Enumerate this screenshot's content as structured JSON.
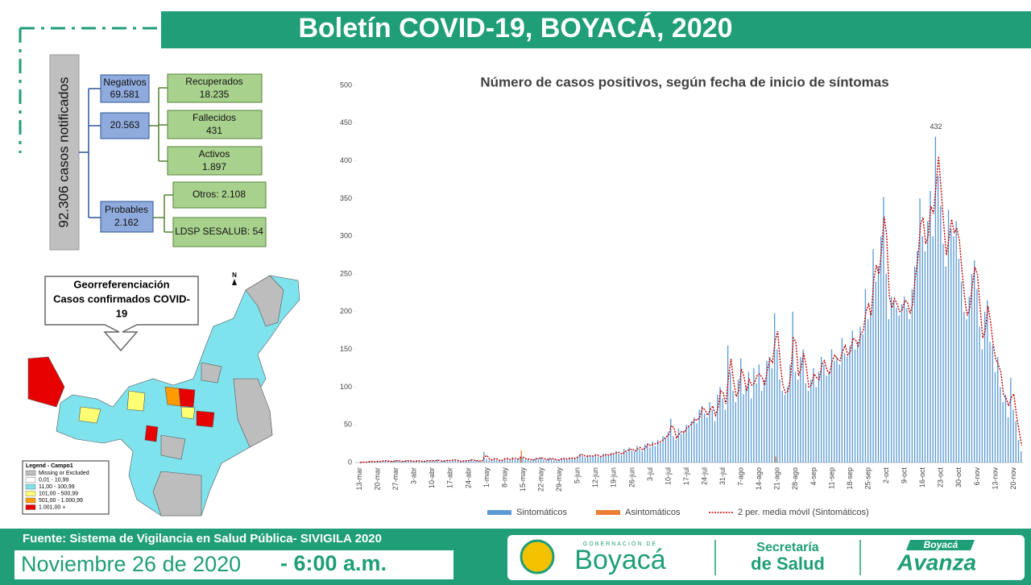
{
  "header": {
    "title": "Boletín COVID-19, BOYACÁ, 2020"
  },
  "summary": {
    "total": "92.306 casos notificados",
    "negativos": {
      "label": "Negativos",
      "value": "69.581"
    },
    "confirmados": {
      "value": "20.563"
    },
    "recuperados": {
      "label": "Recuperados",
      "value": "18.235"
    },
    "fallecidos": {
      "label": "Fallecidos",
      "value": "431"
    },
    "activos": {
      "label": "Activos",
      "value": "1.897"
    },
    "probables": {
      "label": "Probables",
      "value": "2.162"
    },
    "otros": "Otros: 2.108",
    "ldsp": "LDSP SESALUB: 54"
  },
  "map": {
    "callout": [
      "Georreferenciación",
      "Casos confirmados COVID-",
      "19"
    ],
    "north": "N",
    "legend_title": "Legend - Campo1",
    "legend": [
      {
        "label": "Missing or Excluded",
        "color": "#bdbdbd"
      },
      {
        "label": "0,01 - 10,99",
        "color": "#ffffff"
      },
      {
        "label": "11,00 - 100,99",
        "color": "#7fe3ee"
      },
      {
        "label": "101,00 - 500,99",
        "color": "#ffff73"
      },
      {
        "label": "501,00 - 1.000,99",
        "color": "#ff9a00"
      },
      {
        "label": "1.001,00 +",
        "color": "#e60000"
      }
    ]
  },
  "footer": {
    "source": "Fuente: Sistema de Vigilancia en Salud Pública- SIVIGILA 2020",
    "date": "Noviembre 26 de 2020",
    "time": "- 6:00 a.m.",
    "gob_small": "GOBERNACIÓN DE",
    "gob": "Boyacá",
    "sec1": "Secretaría",
    "sec2": "de Salud",
    "avanza_small": "Boyacá",
    "avanza": "Avanza"
  },
  "chart_data": {
    "type": "bar",
    "title": "Número de casos positivos, según fecha de inicio de síntomas",
    "ylim": [
      0,
      500
    ],
    "yticks": [
      0,
      50,
      100,
      150,
      200,
      250,
      300,
      350,
      400,
      450,
      500
    ],
    "grid": false,
    "legend": "bottom",
    "categories": [
      "13-mar",
      null,
      null,
      null,
      null,
      null,
      null,
      "20-mar",
      null,
      null,
      null,
      null,
      null,
      null,
      "27-mar",
      null,
      null,
      null,
      null,
      null,
      null,
      "3-abr",
      null,
      null,
      null,
      null,
      null,
      null,
      "10-abr",
      null,
      null,
      null,
      null,
      null,
      null,
      "17-abr",
      null,
      null,
      null,
      null,
      null,
      null,
      "24-abr",
      null,
      null,
      null,
      null,
      null,
      null,
      "1-may",
      null,
      null,
      null,
      null,
      null,
      null,
      "8-may",
      null,
      null,
      null,
      null,
      null,
      null,
      "15-may",
      null,
      null,
      null,
      null,
      null,
      null,
      "22-may",
      null,
      null,
      null,
      null,
      null,
      null,
      "29-may",
      null,
      null,
      null,
      null,
      null,
      null,
      "5-jun",
      null,
      null,
      null,
      null,
      null,
      null,
      "12-jun",
      null,
      null,
      null,
      null,
      null,
      null,
      "19-jun",
      null,
      null,
      null,
      null,
      null,
      null,
      "26-jun",
      null,
      null,
      null,
      null,
      null,
      null,
      "3-jul",
      null,
      null,
      null,
      null,
      null,
      null,
      "10-jul",
      null,
      null,
      null,
      null,
      null,
      null,
      "17-jul",
      null,
      null,
      null,
      null,
      null,
      null,
      "24-jul",
      null,
      null,
      null,
      null,
      null,
      null,
      "31-jul",
      null,
      null,
      null,
      null,
      null,
      null,
      "7-ago",
      null,
      null,
      null,
      null,
      null,
      null,
      "14-ago",
      null,
      null,
      null,
      null,
      null,
      null,
      "21-ago",
      null,
      null,
      null,
      null,
      null,
      null,
      "28-ago",
      null,
      null,
      null,
      null,
      null,
      null,
      "4-sep",
      null,
      null,
      null,
      null,
      null,
      null,
      "11-sep",
      null,
      null,
      null,
      null,
      null,
      null,
      "18-sep",
      null,
      null,
      null,
      null,
      null,
      null,
      "25-sep",
      null,
      null,
      null,
      null,
      null,
      null,
      "2-oct",
      null,
      null,
      null,
      null,
      null,
      null,
      "9-oct",
      null,
      null,
      null,
      null,
      null,
      null,
      "16-oct",
      null,
      null,
      null,
      null,
      null,
      null,
      "23-oct",
      null,
      null,
      null,
      null,
      null,
      null,
      "30-oct",
      null,
      null,
      null,
      null,
      null,
      null,
      "6-nov",
      null,
      null,
      null,
      null,
      null,
      null,
      "13-nov",
      null,
      null,
      null,
      null,
      null,
      null,
      "20-nov",
      null,
      null,
      null,
      null
    ],
    "series": [
      {
        "name": "Sintomáticos",
        "color": "#5b9bd5",
        "kind": "bar",
        "values": [
          0,
          0,
          1,
          0,
          1,
          2,
          1,
          1,
          2,
          1,
          3,
          2,
          2,
          1,
          2,
          3,
          2,
          1,
          2,
          3,
          2,
          2,
          1,
          3,
          2,
          1,
          2,
          3,
          2,
          3,
          2,
          4,
          1,
          2,
          3,
          3,
          2,
          4,
          3,
          2,
          1,
          3,
          2,
          3,
          4,
          2,
          3,
          2,
          1,
          14,
          5,
          3,
          4,
          6,
          3,
          2,
          4,
          6,
          5,
          3,
          7,
          4,
          5,
          8,
          6,
          4,
          5,
          3,
          4,
          6,
          5,
          7,
          4,
          3,
          6,
          5,
          4,
          3,
          4,
          6,
          5,
          4,
          7,
          5,
          6,
          8,
          12,
          9,
          7,
          10,
          8,
          9,
          11,
          8,
          7,
          12,
          10,
          9,
          13,
          11,
          15,
          12,
          10,
          18,
          14,
          20,
          16,
          14,
          22,
          18,
          15,
          24,
          25,
          20,
          28,
          22,
          30,
          26,
          35,
          33,
          40,
          58,
          35,
          30,
          45,
          38,
          42,
          50,
          48,
          55,
          60,
          52,
          70,
          75,
          65,
          60,
          80,
          70,
          55,
          90,
          100,
          85,
          70,
          155,
          120,
          95,
          80,
          110,
          138,
          90,
          100,
          120,
          85,
          125,
          105,
          130,
          95,
          110,
          135,
          140,
          125,
          198,
          150,
          110,
          95,
          90,
          100,
          130,
          200,
          120,
          110,
          140,
          150,
          105,
          95,
          110,
          125,
          100,
          120,
          140,
          130,
          115,
          120,
          150,
          135,
          140,
          130,
          165,
          145,
          140,
          155,
          175,
          150,
          160,
          180,
          170,
          230,
          190,
          200,
          283,
          240,
          260,
          300,
          352,
          250,
          190,
          220,
          215,
          205,
          195,
          210,
          220,
          205,
          190,
          230,
          260,
          280,
          350,
          300,
          280,
          320,
          360,
          300,
          432,
          380,
          340,
          290,
          260,
          335,
          310,
          300,
          320,
          270,
          240,
          200,
          190,
          220,
          250,
          268,
          230,
          180,
          150,
          200,
          215,
          160,
          155,
          120,
          140,
          100,
          80,
          90,
          60,
          112,
          70,
          55,
          30,
          15
        ]
      },
      {
        "name": "Asintomáticos",
        "color": "#ed7d31",
        "kind": "bar",
        "values": [
          0,
          0,
          0,
          0,
          0,
          0,
          0,
          0,
          0,
          0,
          0,
          0,
          0,
          0,
          0,
          0,
          0,
          0,
          0,
          0,
          0,
          0,
          0,
          0,
          0,
          0,
          0,
          0,
          0,
          0,
          0,
          0,
          0,
          0,
          0,
          0,
          0,
          0,
          0,
          0,
          0,
          0,
          0,
          0,
          0,
          0,
          0,
          0,
          0,
          0,
          0,
          0,
          0,
          0,
          0,
          0,
          0,
          0,
          0,
          0,
          0,
          0,
          0,
          16,
          0,
          0,
          0,
          0,
          0,
          0,
          0,
          0,
          0,
          0,
          0,
          0,
          0,
          0,
          0,
          0,
          0,
          0,
          0,
          0,
          0,
          0,
          0,
          0,
          0,
          0,
          0,
          0,
          0,
          0,
          0,
          0,
          0,
          0,
          0,
          0,
          0,
          0,
          0,
          0,
          0,
          0,
          0,
          0,
          0,
          0,
          0,
          0,
          0,
          0,
          0,
          0,
          0,
          0,
          0,
          0,
          0,
          0,
          0,
          0,
          0,
          0,
          0,
          0,
          0,
          0,
          0,
          0,
          0,
          0,
          0,
          0,
          0,
          0,
          0,
          0,
          0,
          0,
          0,
          0,
          0,
          0,
          0,
          0,
          0,
          0,
          0,
          0,
          0,
          0,
          0,
          0,
          0,
          0,
          0,
          0,
          0,
          8,
          0,
          0,
          0,
          0,
          0,
          0,
          0,
          0,
          0,
          0,
          0,
          0,
          0,
          0,
          0,
          0,
          0,
          0,
          0,
          0,
          0,
          0,
          0,
          0,
          0,
          0,
          0,
          0,
          0,
          0,
          0,
          0,
          0,
          0,
          0,
          0,
          0,
          0,
          0,
          0,
          0,
          0,
          0,
          0,
          0,
          0,
          0,
          0,
          0,
          0,
          0,
          0,
          0,
          0,
          0,
          0,
          0,
          0,
          0,
          0,
          0,
          0,
          0,
          0,
          0,
          0,
          0,
          0,
          0,
          0,
          0,
          0,
          0,
          0,
          0,
          0,
          0,
          0,
          0,
          0,
          0,
          0,
          0,
          0,
          0,
          0,
          0,
          0,
          0,
          0,
          0,
          0,
          0,
          0,
          0
        ]
      },
      {
        "name": "2 per. media móvil (Sintomáticos)",
        "color": "#c00000",
        "kind": "line",
        "values": [
          null,
          0,
          0.5,
          0.5,
          0.5,
          1.5,
          1.5,
          1,
          1.5,
          1.5,
          2,
          2.5,
          2,
          1.5,
          1.5,
          2.5,
          2.5,
          1.5,
          1.5,
          2.5,
          2.5,
          2,
          1.5,
          2,
          2.5,
          1.5,
          1.5,
          2.5,
          2.5,
          2.5,
          2.5,
          3,
          2.5,
          1.5,
          2.5,
          3,
          2.5,
          3,
          3.5,
          2.5,
          1.5,
          2,
          2.5,
          2.5,
          3.5,
          3,
          2.5,
          2.5,
          1.5,
          7.5,
          9.5,
          4,
          3.5,
          5,
          4.5,
          2.5,
          3,
          5,
          5.5,
          4,
          5,
          5.5,
          4.5,
          6.5,
          7,
          5,
          4.5,
          4,
          3.5,
          5,
          5.5,
          6,
          5.5,
          3.5,
          4.5,
          5.5,
          4.5,
          3.5,
          3.5,
          5,
          5.5,
          4.5,
          5.5,
          6,
          5.5,
          7,
          10,
          10.5,
          8,
          8.5,
          9,
          8.5,
          10,
          9.5,
          7.5,
          9.5,
          11,
          9.5,
          11,
          12,
          13,
          13.5,
          11,
          14,
          16,
          17,
          18,
          15,
          18,
          20,
          16.5,
          19.5,
          24.5,
          22.5,
          24,
          25,
          26,
          28,
          30.5,
          34,
          36.5,
          49,
          46.5,
          32.5,
          37.5,
          41.5,
          40,
          46,
          49,
          51.5,
          57.5,
          56,
          61,
          72.5,
          70,
          62.5,
          70,
          75,
          62.5,
          72.5,
          95,
          92.5,
          77.5,
          112.5,
          137.5,
          107.5,
          87.5,
          95,
          124,
          114,
          95,
          110,
          102.5,
          105,
          115,
          117.5,
          112.5,
          102.5,
          122.5,
          137.5,
          132.5,
          161.5,
          174,
          130,
          102.5,
          92.5,
          95,
          115,
          165,
          160,
          115,
          125,
          145,
          127.5,
          100,
          102.5,
          117.5,
          112.5,
          110,
          130,
          135,
          122.5,
          117.5,
          135,
          142.5,
          137.5,
          135,
          147.5,
          155,
          142.5,
          147.5,
          165,
          162.5,
          155,
          170,
          175,
          200,
          210,
          195,
          241.5,
          261.5,
          250,
          280,
          326,
          301,
          220,
          205,
          217.5,
          210,
          200,
          202.5,
          215,
          212.5,
          197.5,
          210,
          245,
          270,
          315,
          325,
          290,
          300,
          340,
          330,
          366,
          406,
          360,
          315,
          275,
          297.5,
          322.5,
          305,
          310,
          295,
          255,
          220,
          195,
          205,
          235,
          259,
          249,
          205,
          165,
          175,
          207.5,
          187.5,
          157.5,
          137.5,
          130,
          120,
          90,
          85,
          75,
          86,
          91,
          62.5,
          42.5,
          22.5
        ]
      }
    ]
  }
}
